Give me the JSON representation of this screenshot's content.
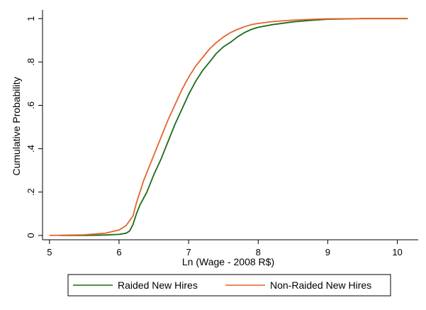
{
  "chart_data": {
    "type": "line",
    "title": "",
    "xlabel": "Ln (Wage - 2008 R$)",
    "ylabel": "Cumulative Probability",
    "xlim": [
      4.9,
      10.3
    ],
    "ylim": [
      -0.02,
      1.04
    ],
    "xticks": [
      5,
      6,
      7,
      8,
      9,
      10
    ],
    "xtick_labels": [
      "5",
      "6",
      "7",
      "8",
      "9",
      "10"
    ],
    "yticks": [
      0,
      0.2,
      0.4,
      0.6,
      0.8,
      1
    ],
    "ytick_labels": [
      "0",
      ".2",
      ".4",
      ".6",
      ".8",
      "1"
    ],
    "grid": false,
    "legend_position": "bottom",
    "series": [
      {
        "name": "Raided New Hires",
        "color": "#1a6b1a",
        "x": [
          5.15,
          5.5,
          5.8,
          6.0,
          6.1,
          6.15,
          6.2,
          6.25,
          6.3,
          6.4,
          6.5,
          6.6,
          6.7,
          6.8,
          6.9,
          7.0,
          7.1,
          7.2,
          7.3,
          7.4,
          7.5,
          7.6,
          7.7,
          7.8,
          7.9,
          8.0,
          8.2,
          8.5,
          8.8,
          9.0,
          9.5,
          10.0,
          10.15
        ],
        "y": [
          0.0,
          0.0,
          0.002,
          0.005,
          0.01,
          0.02,
          0.05,
          0.1,
          0.14,
          0.2,
          0.28,
          0.35,
          0.43,
          0.51,
          0.58,
          0.65,
          0.71,
          0.76,
          0.8,
          0.84,
          0.87,
          0.89,
          0.915,
          0.935,
          0.95,
          0.96,
          0.972,
          0.985,
          0.993,
          0.997,
          1.0,
          1.0,
          1.0
        ]
      },
      {
        "name": "Non-Raided New Hires",
        "color": "#e8622a",
        "x": [
          5.0,
          5.5,
          5.8,
          6.0,
          6.1,
          6.2,
          6.25,
          6.3,
          6.35,
          6.4,
          6.5,
          6.6,
          6.7,
          6.8,
          6.9,
          7.0,
          7.1,
          7.2,
          7.3,
          7.4,
          7.5,
          7.6,
          7.7,
          7.8,
          7.9,
          8.0,
          8.2,
          8.5,
          8.8,
          9.0,
          9.5,
          10.0,
          10.15
        ],
        "y": [
          0.0,
          0.003,
          0.01,
          0.025,
          0.045,
          0.09,
          0.15,
          0.2,
          0.25,
          0.29,
          0.37,
          0.45,
          0.53,
          0.6,
          0.67,
          0.73,
          0.78,
          0.82,
          0.86,
          0.89,
          0.915,
          0.935,
          0.95,
          0.962,
          0.972,
          0.978,
          0.986,
          0.993,
          0.997,
          0.999,
          1.0,
          1.0,
          1.0
        ]
      }
    ]
  }
}
